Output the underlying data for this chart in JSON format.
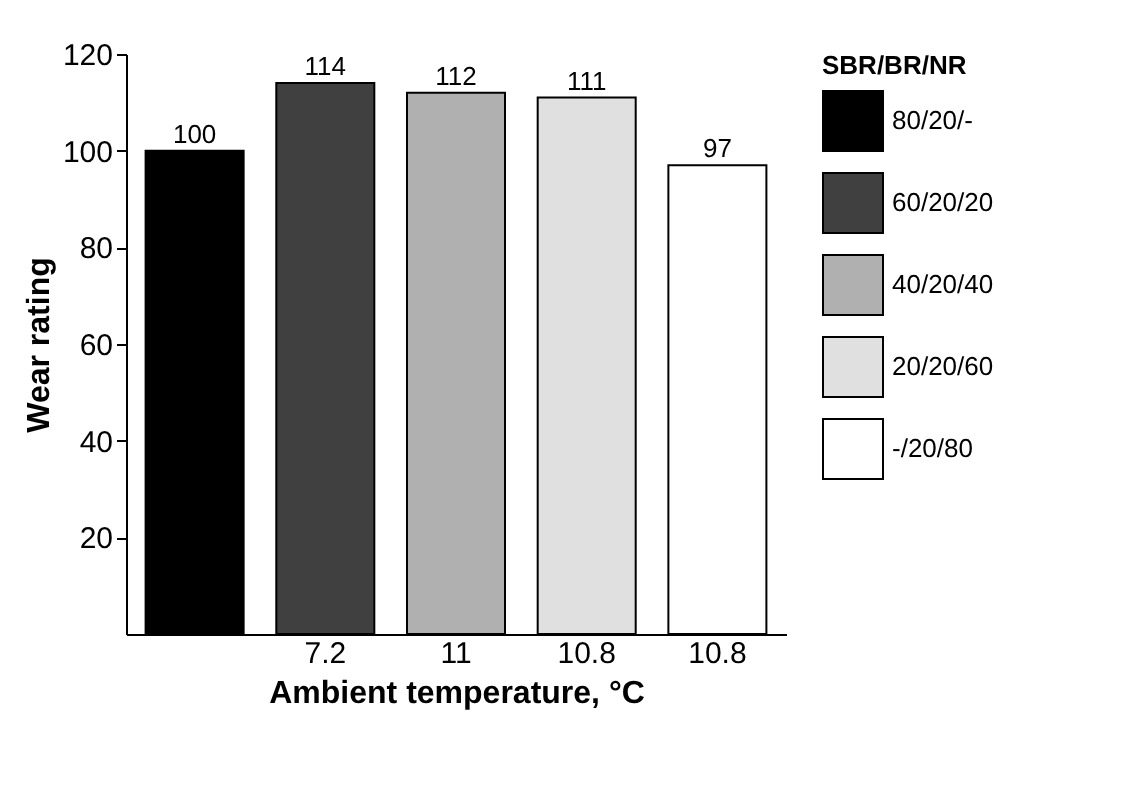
{
  "chart_data": {
    "type": "bar",
    "xlabel": "Ambient temperature, °C",
    "ylabel": "Wear rating",
    "legend_title": "SBR/BR/NR",
    "categories": [
      null,
      "7.2",
      "11",
      "10.8",
      "10.8"
    ],
    "series": [
      {
        "name": "80/20/-",
        "color": "#000000",
        "values": [
          100,
          null,
          null,
          null,
          null
        ]
      },
      {
        "name": "60/20/20",
        "color": "#404040",
        "values": [
          null,
          114,
          null,
          null,
          null
        ]
      },
      {
        "name": "40/20/40",
        "color": "#b0b0b0",
        "values": [
          null,
          null,
          112,
          null,
          null
        ]
      },
      {
        "name": "20/20/60",
        "color": "#e0e0e0",
        "values": [
          null,
          null,
          null,
          111,
          null
        ]
      },
      {
        "name": "-/20/80",
        "color": "#ffffff",
        "values": [
          null,
          null,
          null,
          null,
          97
        ]
      }
    ],
    "ylim": [
      0,
      120
    ],
    "yticks": [
      20,
      40,
      60,
      80,
      100,
      120
    ],
    "data_labels": true,
    "legend": "right",
    "grid": false
  }
}
